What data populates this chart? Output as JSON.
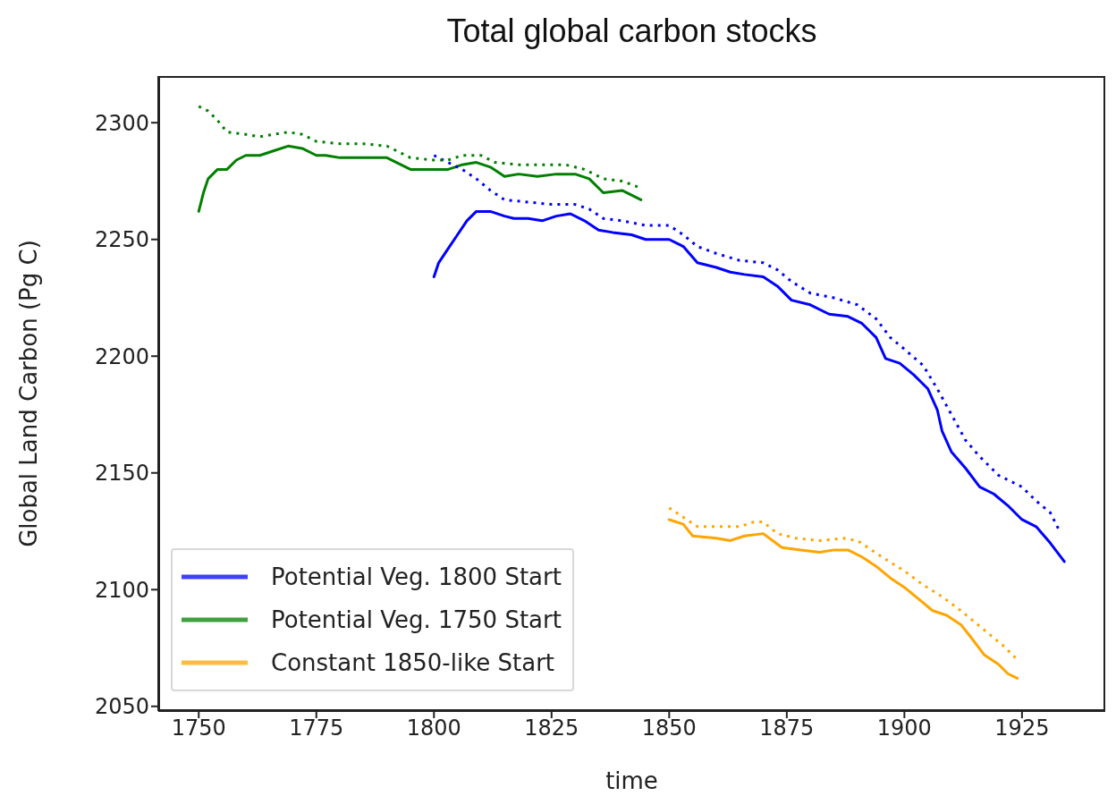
{
  "chart_data": {
    "type": "line",
    "title": "Total global carbon stocks",
    "xlabel": "time",
    "ylabel": "Global Land Carbon (Pg C)",
    "xlim": [
      1741.4,
      1942.7
    ],
    "xticks": [
      1750,
      1775,
      1800,
      1825,
      1850,
      1875,
      1900,
      1925
    ],
    "ylim": [
      2048,
      2320
    ],
    "yticks": [
      2050,
      2100,
      2150,
      2200,
      2250,
      2300
    ],
    "grid": false,
    "legend": "bottom left",
    "marker": "none",
    "series": [
      {
        "name": "Potential Veg. 1800 Start",
        "color": "#0000ff",
        "line_style": "solid",
        "x": [
          1800,
          1801,
          1803,
          1805,
          1807,
          1809,
          1812,
          1815,
          1817,
          1820,
          1823,
          1826,
          1829,
          1832,
          1835,
          1838,
          1842,
          1845,
          1850,
          1853,
          1856,
          1860,
          1863,
          1866,
          1870,
          1873,
          1876,
          1880,
          1884,
          1888,
          1891,
          1894,
          1896,
          1899,
          1902,
          1905,
          1907,
          1908,
          1910,
          1913,
          1916,
          1919,
          1922,
          1925,
          1928,
          1931,
          1934
        ],
        "values": [
          2234,
          2240,
          2246,
          2252,
          2258,
          2262,
          2262,
          2260,
          2259,
          2259,
          2258,
          2260,
          2261,
          2258,
          2254,
          2253,
          2252,
          2250,
          2250,
          2247,
          2240,
          2238,
          2236,
          2235,
          2234,
          2230,
          2224,
          2222,
          2218,
          2217,
          2214,
          2208,
          2199,
          2197,
          2192,
          2186,
          2177,
          2168,
          2159,
          2152,
          2144,
          2141,
          2136,
          2130,
          2127,
          2120,
          2112
        ]
      },
      {
        "name": "Potential Veg. 1750 Start",
        "color": "#008000",
        "line_style": "solid",
        "x": [
          1750,
          1751,
          1752,
          1754,
          1756,
          1758,
          1760,
          1763,
          1766,
          1769,
          1772,
          1775,
          1777,
          1780,
          1785,
          1790,
          1795,
          1800,
          1803,
          1806,
          1809,
          1812,
          1815,
          1818,
          1822,
          1826,
          1830,
          1833,
          1836,
          1840,
          1844
        ],
        "values": [
          2262,
          2270,
          2276,
          2280,
          2280,
          2284,
          2286,
          2286,
          2288,
          2290,
          2289,
          2286,
          2286,
          2285,
          2285,
          2285,
          2280,
          2280,
          2280,
          2282,
          2283,
          2281,
          2277,
          2278,
          2277,
          2278,
          2278,
          2276,
          2270,
          2271,
          2267
        ]
      },
      {
        "name": "Constant 1850-like Start",
        "color": "#ffa500",
        "line_style": "solid",
        "x": [
          1850,
          1853,
          1855,
          1860,
          1863,
          1866,
          1870,
          1872,
          1874,
          1878,
          1882,
          1885,
          1888,
          1891,
          1894,
          1897,
          1900,
          1903,
          1906,
          1909,
          1912,
          1914,
          1917,
          1920,
          1922,
          1924
        ],
        "values": [
          2130,
          2128,
          2123,
          2122,
          2121,
          2123,
          2124,
          2121,
          2118,
          2117,
          2116,
          2117,
          2117,
          2114,
          2110,
          2105,
          2101,
          2096,
          2091,
          2089,
          2085,
          2080,
          2072,
          2068,
          2064,
          2062
        ]
      },
      {
        "color": "#0000ff",
        "line_style": "dotted",
        "x": [
          1800,
          1803,
          1806,
          1809,
          1812,
          1815,
          1820,
          1825,
          1830,
          1833,
          1836,
          1840,
          1845,
          1850,
          1853,
          1856,
          1860,
          1865,
          1870,
          1873,
          1876,
          1880,
          1885,
          1890,
          1894,
          1897,
          1900,
          1904,
          1907,
          1910,
          1913,
          1916,
          1920,
          1925,
          1928,
          1931,
          1933
        ],
        "values": [
          2286,
          2283,
          2280,
          2276,
          2271,
          2267,
          2266,
          2265,
          2265,
          2263,
          2259,
          2258,
          2256,
          2256,
          2252,
          2247,
          2244,
          2241,
          2240,
          2237,
          2232,
          2227,
          2225,
          2222,
          2216,
          2208,
          2203,
          2196,
          2186,
          2175,
          2164,
          2157,
          2149,
          2144,
          2138,
          2133,
          2125
        ]
      },
      {
        "color": "#008000",
        "line_style": "dotted",
        "x": [
          1750,
          1752,
          1754,
          1756,
          1760,
          1763,
          1766,
          1769,
          1772,
          1775,
          1780,
          1785,
          1790,
          1795,
          1800,
          1803,
          1806,
          1810,
          1813,
          1818,
          1823,
          1828,
          1832,
          1836,
          1840,
          1844
        ],
        "values": [
          2307,
          2305,
          2301,
          2296,
          2295,
          2294,
          2295,
          2296,
          2295,
          2292,
          2291,
          2291,
          2290,
          2285,
          2284,
          2284,
          2286,
          2286,
          2283,
          2282,
          2282,
          2282,
          2280,
          2276,
          2275,
          2272
        ]
      },
      {
        "color": "#ffa500",
        "line_style": "dotted",
        "x": [
          1850,
          1853,
          1856,
          1860,
          1865,
          1868,
          1870,
          1873,
          1877,
          1882,
          1887,
          1890,
          1893,
          1896,
          1900,
          1904,
          1908,
          1912,
          1915,
          1918,
          1921,
          1924
        ],
        "values": [
          2135,
          2131,
          2127,
          2127,
          2127,
          2129,
          2129,
          2124,
          2122,
          2121,
          2122,
          2121,
          2117,
          2113,
          2108,
          2102,
          2097,
          2091,
          2086,
          2081,
          2076,
          2070
        ]
      }
    ]
  }
}
